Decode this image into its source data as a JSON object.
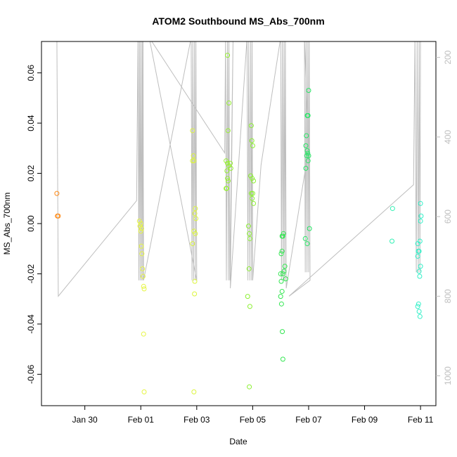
{
  "chart_data": {
    "type": "scatter",
    "title": "ATOM2 Southbound MS_Abs_700nm",
    "xlabel": "Date",
    "ylabel": "MS_Abs_700nm",
    "x_ticks": [
      "Jan 30",
      "Feb 01",
      "Feb 03",
      "Feb 05",
      "Feb 07",
      "Feb 09",
      "Feb 11"
    ],
    "x_tick_days": [
      30,
      32,
      34,
      36,
      38,
      40,
      42
    ],
    "xlim_days": [
      28.45,
      42.55
    ],
    "ylim": [
      -0.0725,
      0.0725
    ],
    "y_ticks": [
      -0.06,
      -0.04,
      -0.02,
      0.0,
      0.02,
      0.04,
      0.06
    ],
    "y_tick_labels": [
      "-0.06",
      "-0.04",
      "-0.02",
      "0.00",
      "0.02",
      "0.04",
      "0.06"
    ],
    "right_axis": {
      "ticks": [
        200,
        400,
        600,
        800,
        1000
      ],
      "tick_labels": [
        "200",
        "400",
        "600",
        "800",
        "1000"
      ],
      "ylim": [
        1075,
        160
      ],
      "color": "#bebebe"
    },
    "grid": false,
    "legend": "none",
    "points": [
      {
        "x": 29.0,
        "y": 0.012,
        "c": "#ff8c1a"
      },
      {
        "x": 29.02,
        "y": 0.003,
        "c": "#ff8c1a"
      },
      {
        "x": 29.05,
        "y": 0.003,
        "c": "#ff8c1a"
      },
      {
        "x": 31.95,
        "y": 0.001,
        "c": "#e6f542"
      },
      {
        "x": 31.97,
        "y": -0.001,
        "c": "#e6f542"
      },
      {
        "x": 32.0,
        "y": -0.003,
        "c": "#e6f542"
      },
      {
        "x": 32.02,
        "y": -0.009,
        "c": "#e6f542"
      },
      {
        "x": 32.04,
        "y": -0.012,
        "c": "#e6f542"
      },
      {
        "x": 32.06,
        "y": -0.018,
        "c": "#e6f542"
      },
      {
        "x": 32.08,
        "y": -0.021,
        "c": "#e6f542"
      },
      {
        "x": 32.1,
        "y": -0.025,
        "c": "#e6f542"
      },
      {
        "x": 32.12,
        "y": -0.026,
        "c": "#e6f542"
      },
      {
        "x": 32.1,
        "y": -0.044,
        "c": "#e6f542"
      },
      {
        "x": 32.12,
        "y": -0.067,
        "c": "#e6f542"
      },
      {
        "x": 32.0,
        "y": 0.0,
        "c": "#e6f542"
      },
      {
        "x": 32.03,
        "y": -0.002,
        "c": "#e6f542"
      },
      {
        "x": 33.85,
        "y": 0.037,
        "c": "#dcf53c"
      },
      {
        "x": 33.88,
        "y": 0.027,
        "c": "#dcf53c"
      },
      {
        "x": 33.9,
        "y": 0.025,
        "c": "#dcf53c"
      },
      {
        "x": 33.85,
        "y": 0.025,
        "c": "#dcf53c"
      },
      {
        "x": 33.95,
        "y": 0.006,
        "c": "#dcf53c"
      },
      {
        "x": 33.93,
        "y": 0.004,
        "c": "#dcf53c"
      },
      {
        "x": 33.97,
        "y": 0.002,
        "c": "#dcf53c"
      },
      {
        "x": 33.9,
        "y": -0.003,
        "c": "#dcf53c"
      },
      {
        "x": 33.95,
        "y": -0.004,
        "c": "#dcf53c"
      },
      {
        "x": 33.85,
        "y": -0.008,
        "c": "#dcf53c"
      },
      {
        "x": 33.93,
        "y": -0.023,
        "c": "#dcf53c"
      },
      {
        "x": 33.92,
        "y": -0.028,
        "c": "#dcf53c"
      },
      {
        "x": 33.9,
        "y": -0.067,
        "c": "#dcf53c"
      },
      {
        "x": 35.1,
        "y": 0.067,
        "c": "#96f032"
      },
      {
        "x": 35.15,
        "y": 0.048,
        "c": "#96f032"
      },
      {
        "x": 35.12,
        "y": 0.037,
        "c": "#96f032"
      },
      {
        "x": 35.05,
        "y": 0.025,
        "c": "#96f032"
      },
      {
        "x": 35.1,
        "y": 0.024,
        "c": "#96f032"
      },
      {
        "x": 35.15,
        "y": 0.023,
        "c": "#96f032"
      },
      {
        "x": 35.2,
        "y": 0.024,
        "c": "#96f032"
      },
      {
        "x": 35.22,
        "y": 0.022,
        "c": "#96f032"
      },
      {
        "x": 35.08,
        "y": 0.021,
        "c": "#96f032"
      },
      {
        "x": 35.1,
        "y": 0.018,
        "c": "#96f032"
      },
      {
        "x": 35.12,
        "y": 0.017,
        "c": "#96f032"
      },
      {
        "x": 35.05,
        "y": 0.014,
        "c": "#96f032"
      },
      {
        "x": 35.07,
        "y": 0.014,
        "c": "#96f032"
      },
      {
        "x": 35.95,
        "y": 0.039,
        "c": "#8cf032"
      },
      {
        "x": 35.97,
        "y": 0.033,
        "c": "#8cf032"
      },
      {
        "x": 36.0,
        "y": 0.031,
        "c": "#8cf032"
      },
      {
        "x": 35.93,
        "y": 0.019,
        "c": "#8cf032"
      },
      {
        "x": 35.98,
        "y": 0.018,
        "c": "#8cf032"
      },
      {
        "x": 36.03,
        "y": 0.017,
        "c": "#8cf032"
      },
      {
        "x": 35.95,
        "y": 0.012,
        "c": "#8cf032"
      },
      {
        "x": 36.0,
        "y": 0.012,
        "c": "#8cf032"
      },
      {
        "x": 35.98,
        "y": 0.01,
        "c": "#8cf032"
      },
      {
        "x": 36.03,
        "y": 0.008,
        "c": "#8cf032"
      },
      {
        "x": 35.85,
        "y": -0.001,
        "c": "#8cf032"
      },
      {
        "x": 35.88,
        "y": -0.004,
        "c": "#8cf032"
      },
      {
        "x": 35.9,
        "y": -0.006,
        "c": "#8cf032"
      },
      {
        "x": 35.87,
        "y": -0.018,
        "c": "#8cf032"
      },
      {
        "x": 35.82,
        "y": -0.029,
        "c": "#8cf032"
      },
      {
        "x": 35.9,
        "y": -0.033,
        "c": "#8cf032"
      },
      {
        "x": 35.88,
        "y": -0.065,
        "c": "#8cf032"
      },
      {
        "x": 37.05,
        "y": -0.005,
        "c": "#32e650"
      },
      {
        "x": 37.1,
        "y": -0.004,
        "c": "#32e650"
      },
      {
        "x": 37.08,
        "y": -0.005,
        "c": "#32e650"
      },
      {
        "x": 37.02,
        "y": -0.012,
        "c": "#32e650"
      },
      {
        "x": 37.05,
        "y": -0.011,
        "c": "#32e650"
      },
      {
        "x": 37.0,
        "y": -0.02,
        "c": "#32e650"
      },
      {
        "x": 37.08,
        "y": -0.02,
        "c": "#32e650"
      },
      {
        "x": 37.15,
        "y": -0.017,
        "c": "#32e650"
      },
      {
        "x": 37.12,
        "y": -0.019,
        "c": "#32e650"
      },
      {
        "x": 37.18,
        "y": -0.022,
        "c": "#32e650"
      },
      {
        "x": 37.02,
        "y": -0.023,
        "c": "#32e650"
      },
      {
        "x": 37.05,
        "y": -0.027,
        "c": "#32e650"
      },
      {
        "x": 37.0,
        "y": -0.029,
        "c": "#32e650"
      },
      {
        "x": 37.03,
        "y": -0.032,
        "c": "#32e650"
      },
      {
        "x": 37.06,
        "y": -0.043,
        "c": "#32e650"
      },
      {
        "x": 37.08,
        "y": -0.054,
        "c": "#32e650"
      },
      {
        "x": 38.0,
        "y": 0.053,
        "c": "#28e666"
      },
      {
        "x": 37.95,
        "y": 0.043,
        "c": "#28e666"
      },
      {
        "x": 37.98,
        "y": 0.043,
        "c": "#28e666"
      },
      {
        "x": 37.92,
        "y": 0.035,
        "c": "#28e666"
      },
      {
        "x": 37.9,
        "y": 0.031,
        "c": "#28e666"
      },
      {
        "x": 37.95,
        "y": 0.029,
        "c": "#28e666"
      },
      {
        "x": 37.97,
        "y": 0.028,
        "c": "#28e666"
      },
      {
        "x": 37.93,
        "y": 0.027,
        "c": "#28e666"
      },
      {
        "x": 38.0,
        "y": 0.027,
        "c": "#28e666"
      },
      {
        "x": 37.98,
        "y": 0.025,
        "c": "#28e666"
      },
      {
        "x": 37.9,
        "y": 0.022,
        "c": "#28e666"
      },
      {
        "x": 38.03,
        "y": -0.002,
        "c": "#28e666"
      },
      {
        "x": 37.88,
        "y": -0.006,
        "c": "#28e666"
      },
      {
        "x": 37.95,
        "y": -0.008,
        "c": "#28e666"
      },
      {
        "x": 41.0,
        "y": 0.006,
        "c": "#32f0b4"
      },
      {
        "x": 40.98,
        "y": -0.007,
        "c": "#32f0b4"
      },
      {
        "x": 42.0,
        "y": 0.008,
        "c": "#32f0c8"
      },
      {
        "x": 42.02,
        "y": 0.003,
        "c": "#32f0c8"
      },
      {
        "x": 42.0,
        "y": 0.001,
        "c": "#32f0c8"
      },
      {
        "x": 41.98,
        "y": -0.007,
        "c": "#32f0c8"
      },
      {
        "x": 41.9,
        "y": -0.008,
        "c": "#32f0c8"
      },
      {
        "x": 41.92,
        "y": -0.011,
        "c": "#32f0c8"
      },
      {
        "x": 41.95,
        "y": -0.011,
        "c": "#32f0c8"
      },
      {
        "x": 41.9,
        "y": -0.013,
        "c": "#32f0c8"
      },
      {
        "x": 42.0,
        "y": -0.017,
        "c": "#32f0c8"
      },
      {
        "x": 41.95,
        "y": -0.019,
        "c": "#32f0c8"
      },
      {
        "x": 41.97,
        "y": -0.021,
        "c": "#32f0c8"
      },
      {
        "x": 41.93,
        "y": -0.032,
        "c": "#32f0c8"
      },
      {
        "x": 41.9,
        "y": -0.033,
        "c": "#32f0c8"
      },
      {
        "x": 41.95,
        "y": -0.035,
        "c": "#32f0c8"
      },
      {
        "x": 41.98,
        "y": -0.037,
        "c": "#32f0c8"
      }
    ],
    "altitude_track": {
      "color": "#bebebe",
      "points": [
        [
          29.0,
          150
        ],
        [
          29.05,
          800
        ],
        [
          31.85,
          560
        ],
        [
          31.9,
          150
        ],
        [
          31.93,
          760
        ],
        [
          31.95,
          150
        ],
        [
          31.98,
          760
        ],
        [
          32.0,
          150
        ],
        [
          32.03,
          760
        ],
        [
          32.05,
          150
        ],
        [
          32.07,
          760
        ],
        [
          32.08,
          150
        ],
        [
          32.1,
          760
        ],
        [
          33.8,
          150
        ],
        [
          33.83,
          760
        ],
        [
          33.86,
          150
        ],
        [
          33.89,
          760
        ],
        [
          33.92,
          150
        ],
        [
          33.95,
          760
        ],
        [
          33.97,
          150
        ],
        [
          34.0,
          760
        ],
        [
          32.3,
          150
        ],
        [
          35.0,
          440
        ],
        [
          35.03,
          150
        ],
        [
          35.06,
          760
        ],
        [
          35.1,
          150
        ],
        [
          35.13,
          760
        ],
        [
          35.15,
          150
        ],
        [
          35.18,
          760
        ],
        [
          35.3,
          150
        ],
        [
          35.2,
          780
        ],
        [
          35.8,
          150
        ],
        [
          35.83,
          760
        ],
        [
          35.86,
          150
        ],
        [
          35.9,
          760
        ],
        [
          35.93,
          150
        ],
        [
          35.96,
          760
        ],
        [
          35.98,
          150
        ],
        [
          36.0,
          760
        ],
        [
          36.3,
          470
        ],
        [
          37.0,
          150
        ],
        [
          37.03,
          760
        ],
        [
          37.06,
          150
        ],
        [
          37.09,
          760
        ],
        [
          37.12,
          150
        ],
        [
          37.15,
          760
        ],
        [
          37.17,
          150
        ],
        [
          37.2,
          780
        ],
        [
          38.0,
          430
        ],
        [
          37.85,
          150
        ],
        [
          37.88,
          740
        ],
        [
          37.91,
          150
        ],
        [
          37.94,
          740
        ],
        [
          37.97,
          150
        ],
        [
          38.0,
          740
        ],
        [
          38.02,
          150
        ],
        [
          38.05,
          760
        ],
        [
          37.3,
          800
        ],
        [
          41.75,
          520
        ],
        [
          41.8,
          150
        ],
        [
          41.85,
          740
        ],
        [
          41.88,
          150
        ],
        [
          41.92,
          740
        ],
        [
          41.95,
          150
        ],
        [
          41.98,
          740
        ],
        [
          42.0,
          150
        ]
      ]
    }
  }
}
